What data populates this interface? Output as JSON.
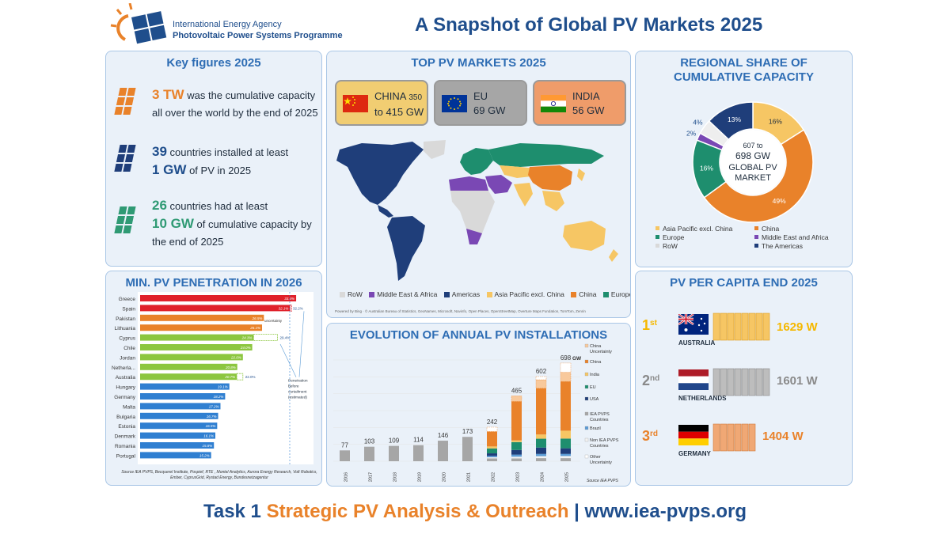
{
  "header": {
    "agency": "International Energy Agency",
    "programme": "Photovoltaic Power Systems Programme",
    "title": "A Snapshot of Global PV Markets 2025"
  },
  "key_figures": {
    "title": "Key figures 2025",
    "f1_big": "3 TW",
    "f1_text": " was the cumulative capacity  all over the world by the end of 2025",
    "f2_big1": "39",
    "f2_text1": " countries installed at least",
    "f2_big2": "1 GW",
    "f2_text2": " of PV in 2025",
    "f3_big1": "26",
    "f3_text1": " countries had at least",
    "f3_big2": "10 GW",
    "f3_text2": " of cumulative capacity by the end of 2025"
  },
  "top_markets": {
    "title": "TOP PV MARKETS 2025",
    "china_name": "CHINA",
    "china_low": "350",
    "china_range": "to 415 GW",
    "eu_name": "EU",
    "eu_value": "69 GW",
    "india_name": "INDIA",
    "india_value": "56 GW",
    "legend": [
      "RoW",
      "Middle East & Africa",
      "Americas",
      "Asia Pacific excl. China",
      "China",
      "Europe"
    ],
    "credit": "Powered by Bing · © Australian Bureau of Statistics, GeoNames, Microsoft, Navinfo, Open Places, OpenStreetMap, Overture Maps Fundation, TomTom, Zenrin",
    "colors": {
      "row": "#d9d9d9",
      "mea": "#7a48b4",
      "americas": "#1f3e7a",
      "apac": "#f6c664",
      "china": "#e9822a",
      "europe": "#1e8e6e"
    }
  },
  "regional": {
    "title_l1": "REGIONAL SHARE OF",
    "title_l2": "CUMULATIVE CAPACITY",
    "center_l1": "607 to",
    "center_l2": "698 GW",
    "center_l3": "GLOBAL PV",
    "center_l4": "MARKET",
    "slices": [
      {
        "name": "Asia Pacific excl. China",
        "value": 16,
        "label": "16%",
        "color": "#f6c664"
      },
      {
        "name": "China",
        "value": 49,
        "label": "49%",
        "color": "#e9822a"
      },
      {
        "name": "Europe",
        "value": 16,
        "label": "16%",
        "color": "#1e8e6e"
      },
      {
        "name": "Middle East and Africa",
        "value": 2,
        "label": "2%",
        "color": "#7a48b4"
      },
      {
        "name": "RoW",
        "value": 4,
        "label": "4%",
        "color": "#eeeeee"
      },
      {
        "name": "The Americas",
        "value": 13,
        "label": "13%",
        "color": "#1f3e7a"
      }
    ]
  },
  "penetration": {
    "title": "MIN. PV PENETRATION IN 2026",
    "uncertainty_label": "uncertainty",
    "curtail_l1": "Penetration",
    "curtail_l2": "before",
    "curtail_l3": "curtailment",
    "curtail_l4": "(estimated)",
    "source": "Source IEA PVPS, Becquerel Institute, Pospief, RTE , Montel Analytics, Aurora Energy Research, Volt Robotics, Ember, CyprusGrid, Rystad Energy, Bundesnetzagentur"
  },
  "chart_data": [
    {
      "type": "bar",
      "title": "MIN. PV PENETRATION IN 2026",
      "orientation": "horizontal",
      "categories": [
        "Greece",
        "Spain",
        "Pakistan",
        "Lithuania",
        "Cyprus",
        "Chile",
        "Jordan",
        "Netherla...",
        "Australia",
        "Hungary",
        "Germany",
        "Malta",
        "Bulgaria",
        "Estonia",
        "Denmark",
        "Romania",
        "Portugal"
      ],
      "values": [
        33.4,
        32.1,
        26.5,
        26.1,
        24.3,
        24.0,
        22.0,
        20.8,
        20.7,
        19.1,
        18.2,
        17.2,
        16.7,
        16.5,
        16.1,
        15.8,
        15.2
      ],
      "value_labels": [
        "33.4%",
        "32.1%",
        "26.5%",
        "26.1%",
        "24.3%",
        "24.0%",
        "22.0%",
        "20.8%",
        "20.7%",
        "19.1%",
        "18.2%",
        "17.2%",
        "16.7%",
        "16.5%",
        "16.1%",
        "15.8%",
        "15.2%"
      ],
      "groups": [
        "red",
        "red",
        "orange",
        "orange",
        "green",
        "green",
        "green",
        "green",
        "green",
        "blue",
        "blue",
        "blue",
        "blue",
        "blue",
        "blue",
        "blue",
        "blue"
      ],
      "extensions": [
        {
          "category": "Spain",
          "value": 32.2,
          "label": "32.2%"
        },
        {
          "category": "Cyprus",
          "value": 29.4,
          "label": "29.4%"
        },
        {
          "category": "Australia",
          "value": 22.0,
          "label": "22.0%"
        }
      ],
      "group_colors": {
        "red": "#e0202a",
        "orange": "#e9822a",
        "green": "#8cc63f",
        "blue": "#2f7fd1"
      }
    },
    {
      "type": "bar",
      "stacked": true,
      "title": "EVOLUTION OF ANNUAL PV INSTALLATIONS",
      "categories": [
        "2016",
        "2017",
        "2018",
        "2019",
        "2020",
        "2021",
        "2022",
        "2023",
        "2024",
        "2025"
      ],
      "totals": [
        77,
        103,
        109,
        114,
        146,
        173,
        242,
        465,
        602,
        698
      ],
      "total_labels": [
        "77",
        "103",
        "109",
        "114",
        "146",
        "173",
        "242",
        "465",
        "602",
        "698"
      ],
      "unit": "GW",
      "series": [
        {
          "name": "IEA PVPS Countries",
          "color": "#a6a6a6",
          "values": [
            77,
            103,
            109,
            114,
            146,
            173,
            20,
            20,
            22,
            22
          ]
        },
        {
          "name": "Non IEA PVPS Countries",
          "color": "#f2f2f2",
          "values": [
            0,
            0,
            0,
            0,
            0,
            0,
            8,
            12,
            14,
            15
          ]
        },
        {
          "name": "Brazil",
          "color": "#5b9bd5",
          "values": [
            0,
            0,
            0,
            0,
            0,
            0,
            10,
            15,
            16,
            15
          ]
        },
        {
          "name": "USA",
          "color": "#1f3e7a",
          "values": [
            0,
            0,
            0,
            0,
            0,
            0,
            18,
            33,
            45,
            40
          ]
        },
        {
          "name": "EU",
          "color": "#1e8e6e",
          "values": [
            0,
            0,
            0,
            0,
            0,
            0,
            35,
            56,
            63,
            69
          ]
        },
        {
          "name": "India",
          "color": "#f6c664",
          "values": [
            0,
            0,
            0,
            0,
            0,
            0,
            14,
            12,
            30,
            56
          ]
        },
        {
          "name": "China",
          "color": "#e9822a",
          "values": [
            0,
            0,
            0,
            0,
            0,
            0,
            106,
            277,
            329,
            350
          ]
        },
        {
          "name": "China Uncertainty",
          "color": "#f8c99c",
          "values": [
            0,
            0,
            0,
            0,
            0,
            0,
            0,
            40,
            60,
            65
          ]
        },
        {
          "name": "Other Uncertainty",
          "color": "#ffffff",
          "values": [
            0,
            0,
            0,
            0,
            0,
            0,
            31,
            0,
            23,
            66
          ]
        }
      ],
      "legend": [
        "China Uncertainty",
        "China",
        "India",
        "EU",
        "USA",
        "IEA PVPS Countries",
        "Brazil",
        "Non IEA PVPS Countries",
        "Other Uncertainty"
      ],
      "legend_colors": [
        "#f8c99c",
        "#e9822a",
        "#f6c664",
        "#1e8e6e",
        "#1f3e7a",
        "#a6a6a6",
        "#5b9bd5",
        "#f2f2f2",
        "#ffffff"
      ],
      "source": "Source IEA PVPS"
    }
  ],
  "per_capita": {
    "title": "PV PER CAPITA END 2025",
    "rows": [
      {
        "rank": "1",
        "suffix": "st",
        "country": "AUSTRALIA",
        "value": "1629 W",
        "color": "#f5b800",
        "panel": "#f6c664"
      },
      {
        "rank": "2",
        "suffix": "nd",
        "country": "NETHERLANDS",
        "value": "1601 W",
        "color": "#8a8a8a",
        "panel": "#bdbdbd"
      },
      {
        "rank": "3",
        "suffix": "rd",
        "country": "GERMANY",
        "value": "1404 W",
        "color": "#e9822a",
        "panel": "#f0a875"
      }
    ]
  },
  "footer": {
    "part1": "Task 1 ",
    "part2": "Strategic PV Analysis & Outreach",
    "part3": " | www.iea-pvps.org"
  }
}
